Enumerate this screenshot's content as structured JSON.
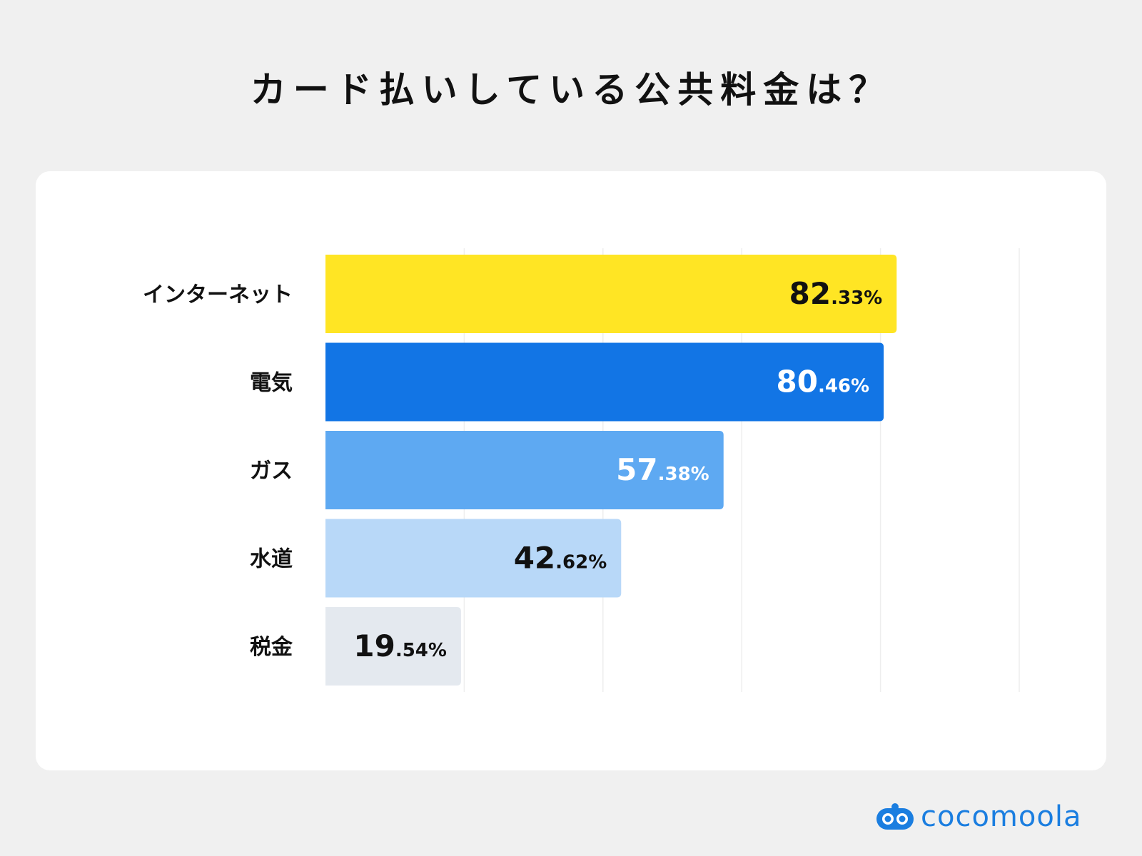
{
  "title": "カード払いしている公共料金は？",
  "brand": {
    "name": "cocomoola",
    "color": "#1b7ee0",
    "icon": "cocomoola-logo-icon"
  },
  "chart_data": {
    "type": "bar",
    "orientation": "horizontal",
    "title": "",
    "categories": [
      "インターネット",
      "電気",
      "ガス",
      "水道",
      "税金"
    ],
    "values": [
      82.33,
      80.46,
      57.38,
      42.62,
      19.54
    ],
    "value_labels": [
      {
        "int": "82",
        "dec": ".33%"
      },
      {
        "int": "80",
        "dec": ".46%"
      },
      {
        "int": "57",
        "dec": ".38%"
      },
      {
        "int": "42",
        "dec": ".62%"
      },
      {
        "int": "19",
        "dec": ".54%"
      }
    ],
    "bar_colors": [
      "#ffe524",
      "#1275e5",
      "#5ea9f2",
      "#b8d8f8",
      "#e4e9ef"
    ],
    "label_colors": [
      "#111111",
      "#ffffff",
      "#ffffff",
      "#111111",
      "#111111"
    ],
    "xlim": [
      0,
      100
    ],
    "grid": true,
    "gridlines": [
      20,
      40,
      60,
      80,
      100
    ]
  }
}
